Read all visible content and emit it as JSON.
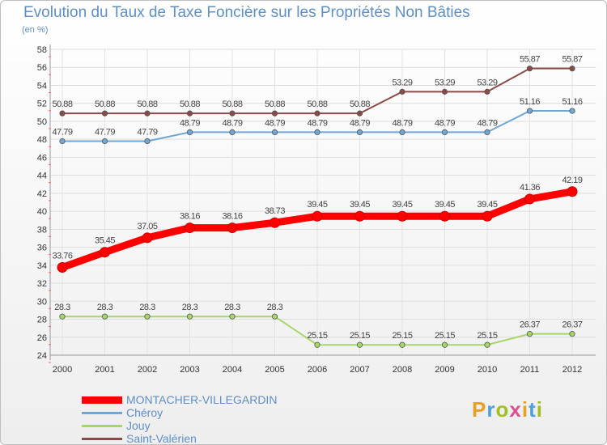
{
  "title": "Evolution du Taux de Taxe Foncière sur les Propriétés Non Bâties",
  "unit_label": "(en %)",
  "logo": {
    "text": "Proxiti",
    "colors": [
      "#e8a020",
      "#4da0e0",
      "#a0c020",
      "#e05090",
      "#e8a020",
      "#4da0e0",
      "#a0c020"
    ]
  },
  "chart_data": {
    "type": "line",
    "title": "Evolution du Taux de Taxe Foncière sur les Propriétés Non Bâties",
    "ylabel": "(en %)",
    "xlabel": "",
    "ylim": [
      24,
      58
    ],
    "yticks": [
      24,
      26,
      28,
      30,
      32,
      34,
      36,
      38,
      40,
      42,
      44,
      46,
      48,
      50,
      52,
      54,
      56,
      58
    ],
    "grid": true,
    "legend_position": "bottom-left",
    "categories": [
      "2000",
      "2001",
      "2002",
      "2003",
      "2004",
      "2005",
      "2006",
      "2007",
      "2008",
      "2009",
      "2010",
      "2011",
      "2012"
    ],
    "series": [
      {
        "name": "MONTACHER-VILLEGARDIN",
        "color": "#ff0000",
        "values": [
          33.76,
          35.45,
          37.05,
          38.16,
          38.16,
          38.73,
          39.45,
          39.45,
          39.45,
          39.45,
          39.45,
          41.36,
          42.19
        ],
        "labels": [
          "33.76",
          "35.45",
          "37.05",
          "38.16",
          "38.16",
          "38.73",
          "39.45",
          "39.45",
          "39.45",
          "39.45",
          "39.45",
          "41.36",
          "42.19"
        ]
      },
      {
        "name": "Chéroy",
        "color": "#6fa8d6",
        "values": [
          47.79,
          47.79,
          47.79,
          48.79,
          48.79,
          48.79,
          48.79,
          48.79,
          48.79,
          48.79,
          48.79,
          51.16,
          51.16
        ],
        "labels": [
          "47.79",
          "47.79",
          "47.79",
          "48.79",
          "48.79",
          "48.79",
          "48.79",
          "48.79",
          "48.79",
          "48.79",
          "48.79",
          "51.16",
          "51.16"
        ]
      },
      {
        "name": "Jouy",
        "color": "#a6d66a",
        "values": [
          28.3,
          28.3,
          28.3,
          28.3,
          28.3,
          28.3,
          25.15,
          25.15,
          25.15,
          25.15,
          25.15,
          26.37,
          26.37
        ],
        "labels": [
          "28.3",
          "28.3",
          "28.3",
          "28.3",
          "28.3",
          "28.3",
          "25.15",
          "25.15",
          "25.15",
          "25.15",
          "25.15",
          "26.37",
          "26.37"
        ]
      },
      {
        "name": "Saint-Valérien",
        "color": "#8b4a4a",
        "values": [
          50.88,
          50.88,
          50.88,
          50.88,
          50.88,
          50.88,
          50.88,
          50.88,
          53.29,
          53.29,
          53.29,
          55.87,
          55.87
        ],
        "labels": [
          "50.88",
          "50.88",
          "50.88",
          "50.88",
          "50.88",
          "50.88",
          "50.88",
          "50.88",
          "53.29",
          "53.29",
          "53.29",
          "55.87",
          "55.87"
        ]
      }
    ]
  }
}
